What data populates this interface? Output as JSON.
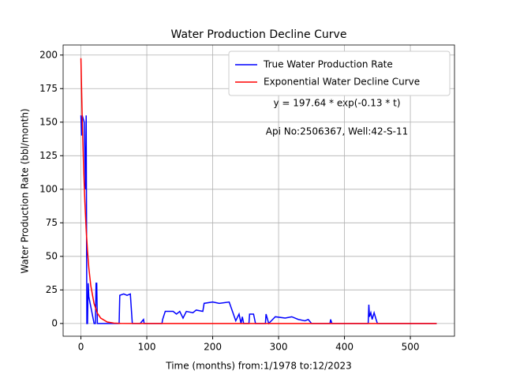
{
  "chart_data": {
    "type": "line",
    "title": "Water Production Decline Curve",
    "xlabel": "Time (months) from:1/1978 to:12/2023",
    "ylabel": "Water Production Rate (bbl/month)",
    "annotations": [
      "y = 197.64 * exp(-0.13 * t)",
      "Api No:2506367, Well:42-S-11"
    ],
    "xlim": [
      -27,
      567
    ],
    "ylim": [
      -9.5,
      207.5
    ],
    "xticks": [
      0,
      100,
      200,
      300,
      400,
      500
    ],
    "yticks": [
      0,
      25,
      50,
      75,
      100,
      125,
      150,
      175,
      200
    ],
    "grid": true,
    "legend": "upper right",
    "series": [
      {
        "name": "True Water Production Rate",
        "color": "#0000ff",
        "x": [
          0,
          1,
          2,
          5,
          7,
          8,
          9,
          10,
          11,
          12,
          14,
          18,
          20,
          22,
          23,
          24,
          25,
          40,
          58,
          59,
          65,
          70,
          75,
          78,
          90,
          95,
          96,
          123,
          124,
          128,
          140,
          145,
          150,
          155,
          160,
          170,
          175,
          185,
          187,
          200,
          210,
          225,
          230,
          235,
          240,
          243,
          245,
          247,
          255,
          256,
          262,
          265,
          280,
          281,
          285,
          295,
          310,
          320,
          330,
          340,
          345,
          350,
          378,
          379,
          381,
          436,
          437,
          438,
          440,
          442,
          445,
          448,
          450,
          540
        ],
        "values": [
          155,
          140,
          155,
          150,
          100,
          155,
          0,
          0,
          30,
          20,
          15,
          5,
          0,
          0,
          30,
          30,
          0,
          0,
          0,
          21,
          22,
          21,
          22,
          0,
          0,
          3,
          0,
          0,
          3,
          9,
          9,
          7,
          9,
          4,
          9,
          8,
          10,
          9,
          15,
          16,
          15,
          16,
          9,
          2,
          7,
          0,
          5,
          0,
          0,
          7,
          7,
          0,
          0,
          7,
          0,
          5,
          4,
          5,
          3,
          2,
          3,
          0,
          0,
          3,
          0,
          0,
          14,
          5,
          8,
          3,
          8,
          3,
          0,
          0
        ]
      },
      {
        "name": "Exponential Water Decline Curve",
        "color": "#ff0000",
        "x": [
          0,
          2,
          4,
          6,
          8,
          10,
          12,
          15,
          20,
          25,
          30,
          40,
          50,
          60,
          100,
          200,
          540
        ],
        "values": [
          197.64,
          152.4,
          117.5,
          90.6,
          69.9,
          53.9,
          41.5,
          28.1,
          14.7,
          7.7,
          4.0,
          1.1,
          0.3,
          0.08,
          0,
          0,
          0
        ]
      }
    ]
  }
}
